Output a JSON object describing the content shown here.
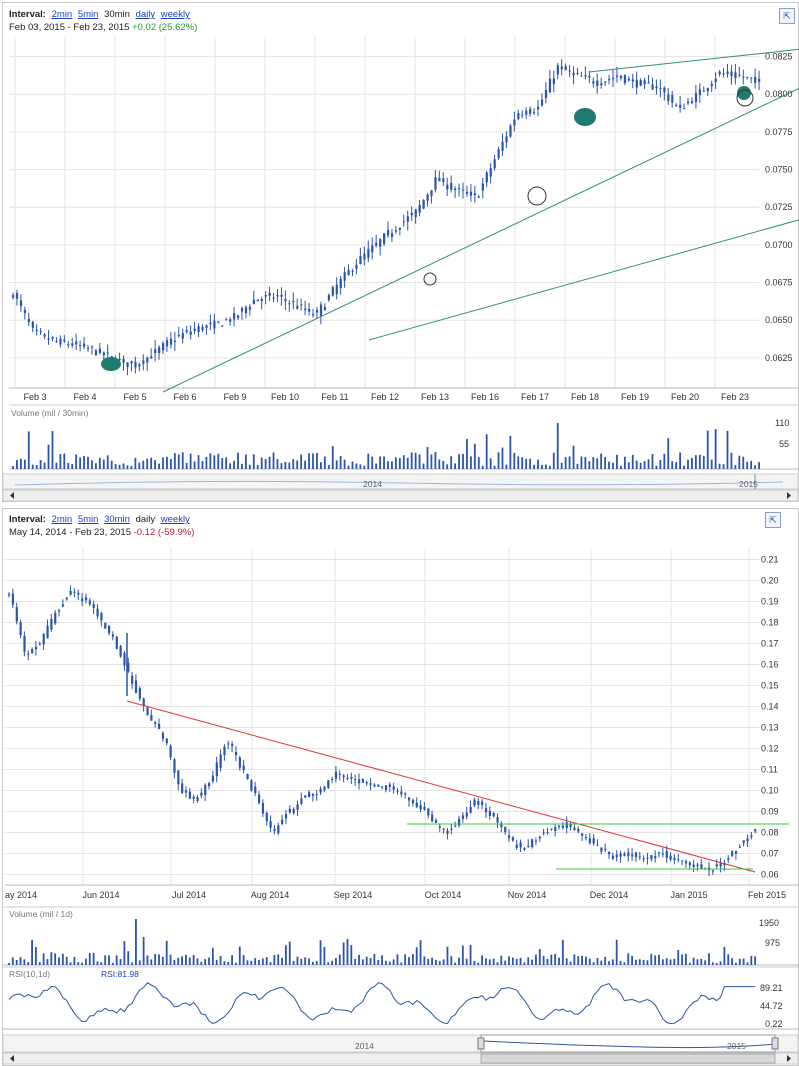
{
  "top": {
    "interval_label": "Interval:",
    "intervals": [
      "2min",
      "5min",
      "30min",
      "daily",
      "weekly"
    ],
    "active_interval": "30min",
    "range": "Feb 03, 2015  -  Feb 23, 2015",
    "change": "+0.02 (25.62%)",
    "expand_icon": "expand-icon",
    "chart_data": {
      "type": "candlestick",
      "x_tick_labels": [
        "Feb 3",
        "Feb 4",
        "Feb 5",
        "Feb 6",
        "Feb 9",
        "Feb 10",
        "Feb 11",
        "Feb 12",
        "Feb 13",
        "Feb 16",
        "Feb 17",
        "Feb 18",
        "Feb 19",
        "Feb 20",
        "Feb 23"
      ],
      "y_tick_labels": [
        "0.0825",
        "0.0800",
        "0.0775",
        "0.0750",
        "0.0725",
        "0.0700",
        "0.0675",
        "0.0650",
        "0.0625"
      ],
      "ylim": [
        0.0605,
        0.0838
      ],
      "grid": true,
      "approx_close_by_day": [
        0.064,
        0.0628,
        0.0616,
        0.0644,
        0.0652,
        0.0665,
        0.0652,
        0.069,
        0.0722,
        0.0735,
        0.0795,
        0.0812,
        0.0808,
        0.0815,
        0.0808
      ],
      "volume_label": "Volume (mil / 30min)",
      "volume_ticks": [
        "110",
        "55"
      ],
      "navigator_labels": [
        "2014",
        "2015"
      ]
    }
  },
  "bottom": {
    "interval_label": "Interval:",
    "intervals": [
      "2min",
      "5min",
      "30min",
      "daily",
      "weekly"
    ],
    "active_interval": "daily",
    "range": "May 14, 2014  -  Feb 23, 2015",
    "change": "-0.12 (-59.9%)",
    "expand_icon": "expand-icon",
    "chart_data": {
      "type": "candlestick",
      "x_tick_labels": [
        "ay 2014",
        "Jun 2014",
        "Jul 2014",
        "Aug 2014",
        "Sep 2014",
        "Oct 2014",
        "Nov 2014",
        "Dec 2014",
        "Jan 2015",
        "Feb 2015"
      ],
      "y_tick_labels": [
        "0.21",
        "0.20",
        "0.19",
        "0.18",
        "0.17",
        "0.16",
        "0.15",
        "0.14",
        "0.13",
        "0.12",
        "0.11",
        "0.10",
        "0.09",
        "0.08",
        "0.07",
        "0.06"
      ],
      "ylim": [
        0.055,
        0.215
      ],
      "grid": true,
      "approx_close_by_month": [
        0.17,
        0.195,
        0.105,
        0.09,
        0.108,
        0.095,
        0.083,
        0.072,
        0.063,
        0.08
      ],
      "volume_label": "Volume (mil / 1d)",
      "volume_ticks": [
        "1950",
        "975"
      ],
      "rsi_label": "RSI(10,1d)",
      "rsi_value": "RSI:81.98",
      "rsi_ticks": [
        "89.21",
        "44.72",
        "0.22"
      ],
      "navigator_labels": [
        "2014",
        "2015"
      ]
    }
  },
  "colors": {
    "candle": "#2a55a8",
    "trend_teal": "#2f8f86",
    "trend_red": "#e03030",
    "support_green": "#33cc33",
    "grid": "#e4e4e4",
    "marker_teal": "#1f7a70"
  }
}
